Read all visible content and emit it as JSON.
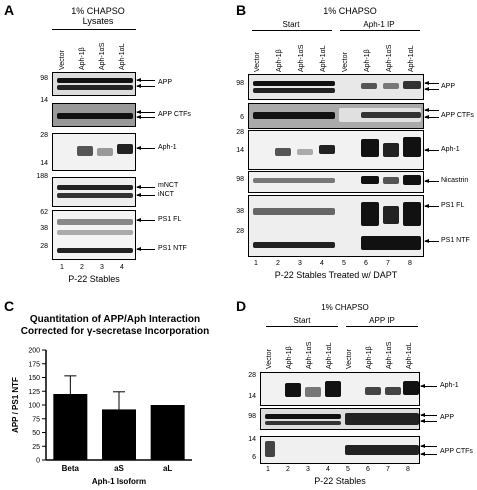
{
  "panel_a": {
    "letter": "A",
    "header_line1": "1% CHAPSO",
    "header_line2": "Lysates",
    "lanes": [
      "Vector",
      "Aph-1β",
      "Aph-1αS",
      "Aph-1αL"
    ],
    "lane_numbers": [
      "1",
      "2",
      "3",
      "4"
    ],
    "footer": "P-22 Stables",
    "markers": [
      "98",
      "14",
      "28",
      "14",
      "188",
      "62",
      "38",
      "28"
    ],
    "labels": [
      "APP",
      "APP CTFs",
      "Aph-1",
      "mNCT",
      "iNCT",
      "PS1 FL",
      "PS1 NTF"
    ]
  },
  "panel_b": {
    "letter": "B",
    "header": "1% CHAPSO",
    "group_start": "Start",
    "group_ip": "Aph-1 IP",
    "lanes": [
      "Vector",
      "Aph-1β",
      "Aph-1αS",
      "Aph-1αL",
      "Vector",
      "Aph-1β",
      "Aph-1αS",
      "Aph-1αL"
    ],
    "lane_numbers": [
      "1",
      "2",
      "3",
      "4",
      "5",
      "6",
      "7",
      "8"
    ],
    "footer": "P-22 Stables Treated w/ DAPT",
    "markers": [
      "98",
      "6",
      "28",
      "14",
      "98",
      "38",
      "28"
    ],
    "labels": [
      "APP",
      "APP CTFs",
      "Aph-1",
      "Nicastrin",
      "PS1 FL",
      "PS1 NTF"
    ]
  },
  "panel_c": {
    "letter": "C",
    "title_line1": "Quantitation of  APP/Aph Interaction",
    "title_line2": "Corrected for γ-secretase Incorporation",
    "ylabel": "APP / PS1 NTF",
    "xlabel": "Aph-1 Isoform"
  },
  "panel_d": {
    "letter": "D",
    "header": "1% CHAPSO",
    "group_start": "Start",
    "group_ip": "APP IP",
    "lanes": [
      "Vector",
      "Aph-1β",
      "Aph-1αS",
      "Aph-1αL",
      "Vector",
      "Aph-1β",
      "Aph-1αS",
      "Aph-1αL"
    ],
    "lane_numbers": [
      "1",
      "2",
      "3",
      "4",
      "5",
      "6",
      "7",
      "8"
    ],
    "footer": "P-22 Stables",
    "markers": [
      "28",
      "14",
      "98",
      "14",
      "6"
    ],
    "labels": [
      "Aph-1",
      "APP",
      "APP CTFs"
    ]
  },
  "chart_data": {
    "type": "bar",
    "title": "Quantitation of  APP/Aph Interaction Corrected for γ-secretase Incorporation",
    "categories": [
      "Beta",
      "aS",
      "aL"
    ],
    "values": [
      120,
      92,
      100
    ],
    "errors": [
      33,
      32,
      0
    ],
    "xlabel": "Aph-1 Isoform",
    "ylabel": "APP / PS1 NTF",
    "ylim": [
      0,
      200
    ],
    "yticks": [
      "0",
      "25",
      "50",
      "75",
      "100",
      "125",
      "150",
      "175",
      "200"
    ],
    "bar_color": "#000000",
    "grid": false
  }
}
